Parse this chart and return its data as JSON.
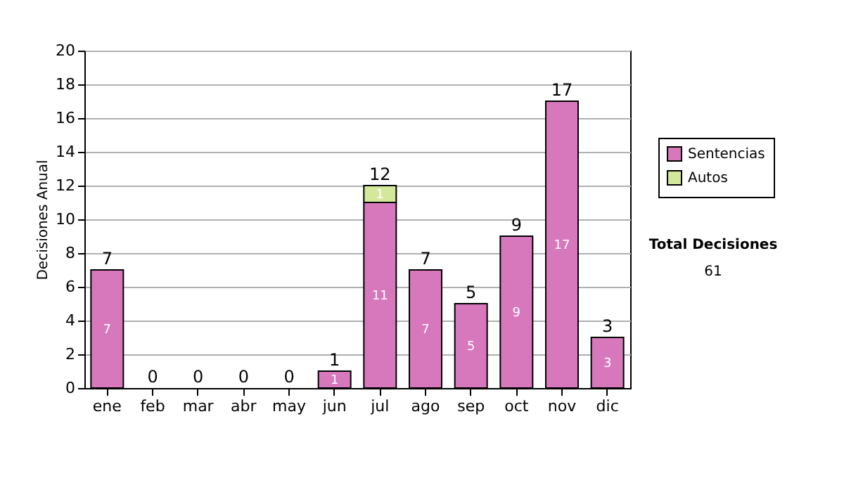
{
  "chart_data": {
    "type": "bar",
    "stacked": true,
    "categories": [
      "ene",
      "feb",
      "mar",
      "abr",
      "may",
      "jun",
      "jul",
      "ago",
      "sep",
      "oct",
      "nov",
      "dic"
    ],
    "series": [
      {
        "name": "Sentencias",
        "color": "#d878bc",
        "values": [
          7,
          0,
          0,
          0,
          0,
          1,
          11,
          7,
          5,
          9,
          17,
          3
        ],
        "value_labels": [
          "7",
          null,
          null,
          null,
          null,
          "1",
          "11",
          "7",
          "5",
          "9",
          "17",
          "3"
        ]
      },
      {
        "name": "Autos",
        "color": "#d4e89c",
        "values": [
          0,
          0,
          0,
          0,
          0,
          0,
          1,
          0,
          0,
          0,
          0,
          0
        ],
        "value_labels": [
          null,
          null,
          null,
          null,
          null,
          null,
          "1",
          null,
          null,
          null,
          null,
          null
        ]
      }
    ],
    "totals": [
      "7",
      "0",
      "0",
      "0",
      "0",
      "1",
      "12",
      "7",
      "5",
      "9",
      "17",
      "3"
    ],
    "ylabel": "Decisiones Anual",
    "ylim": [
      0,
      20
    ],
    "yticks": [
      0,
      2,
      4,
      6,
      8,
      10,
      12,
      14,
      16,
      18,
      20
    ],
    "grid": "y",
    "legend": "right",
    "annotations": [
      "Total Decisiones",
      "61"
    ]
  }
}
